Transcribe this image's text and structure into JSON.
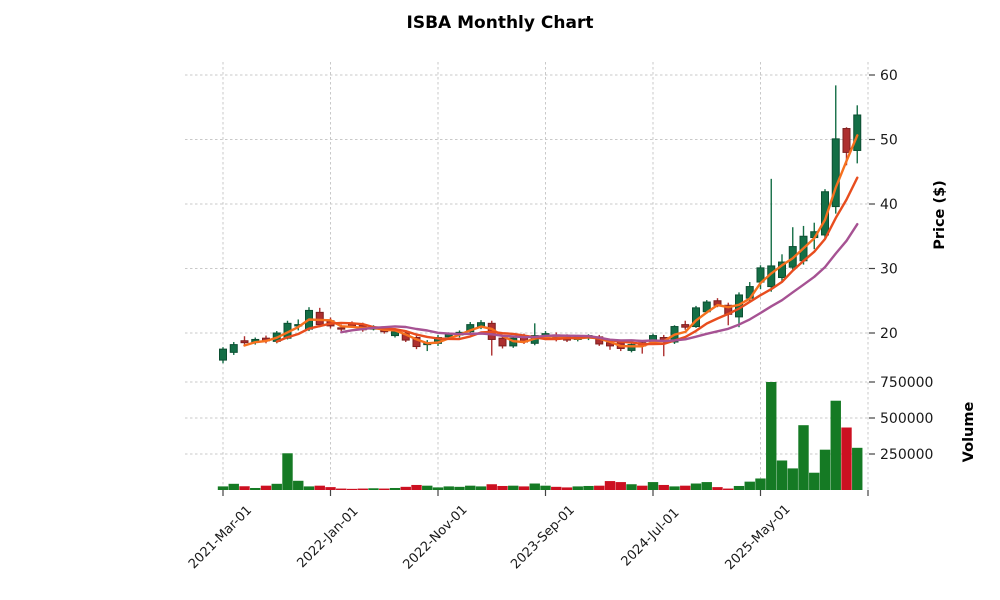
{
  "title": "ISBA Monthly Chart",
  "chart_data": {
    "type": "candlestick",
    "title": "ISBA Monthly Chart",
    "ylabel": "Price ($)",
    "ylabel_volume": "Volume",
    "grid": true,
    "price_ticks": [
      20,
      30,
      40,
      50,
      60
    ],
    "price_axis_range": [
      14.3,
      62.3
    ],
    "volume_ticks": [
      250000,
      500000,
      750000
    ],
    "x_ticks": [
      {
        "index": 0,
        "label": "2021-Mar-01"
      },
      {
        "index": 10,
        "label": "2022-Jan-01"
      },
      {
        "index": 20,
        "label": "2022-Nov-01"
      },
      {
        "index": 30,
        "label": "2023-Sep-01"
      },
      {
        "index": 40,
        "label": "2024-Jul-01"
      },
      {
        "index": 50,
        "label": "2025-May-01"
      }
    ],
    "extra_unlabeled_tick_index": 60,
    "moving_average_windows": [
      3,
      6,
      12
    ],
    "candles_format": [
      "open",
      "high",
      "low",
      "close",
      "volume"
    ],
    "candles": [
      [
        15.8,
        17.8,
        15.3,
        17.5,
        25000
      ],
      [
        17.0,
        18.6,
        16.6,
        18.2,
        43000
      ],
      [
        18.8,
        19.5,
        18.2,
        18.5,
        26000
      ],
      [
        18.6,
        19.3,
        18.2,
        19.0,
        14000
      ],
      [
        19.2,
        19.6,
        18.4,
        18.8,
        30000
      ],
      [
        18.7,
        20.3,
        18.4,
        20.0,
        43000
      ],
      [
        19.2,
        21.9,
        19.0,
        21.5,
        255000
      ],
      [
        21.1,
        22.1,
        20.4,
        21.3,
        64000
      ],
      [
        20.6,
        24.0,
        20.3,
        23.5,
        25000
      ],
      [
        23.2,
        23.9,
        20.9,
        21.3,
        30000
      ],
      [
        21.9,
        22.4,
        20.7,
        21.1,
        20000
      ],
      [
        20.8,
        21.3,
        20.3,
        20.7,
        10000
      ],
      [
        21.4,
        21.8,
        20.9,
        21.1,
        8000
      ],
      [
        21.2,
        21.6,
        20.2,
        20.5,
        10000
      ],
      [
        20.8,
        21.2,
        20.4,
        20.8,
        12000
      ],
      [
        20.6,
        20.9,
        19.9,
        20.2,
        10000
      ],
      [
        19.6,
        20.6,
        19.3,
        20.2,
        14000
      ],
      [
        20.0,
        20.3,
        18.6,
        18.9,
        22000
      ],
      [
        19.3,
        19.6,
        17.5,
        17.9,
        35000
      ],
      [
        18.2,
        18.9,
        17.2,
        18.4,
        30000
      ],
      [
        18.4,
        19.7,
        18.0,
        19.3,
        18000
      ],
      [
        19.4,
        20.1,
        19.0,
        19.8,
        25000
      ],
      [
        19.7,
        20.4,
        19.3,
        20.1,
        22000
      ],
      [
        20.2,
        21.7,
        19.9,
        21.3,
        30000
      ],
      [
        21.0,
        22.0,
        20.6,
        21.6,
        25000
      ],
      [
        21.5,
        21.9,
        16.5,
        19.0,
        40000
      ],
      [
        19.2,
        19.6,
        17.6,
        18.0,
        28000
      ],
      [
        18.0,
        19.5,
        17.7,
        19.2,
        30000
      ],
      [
        19.4,
        19.9,
        18.3,
        18.6,
        25000
      ],
      [
        18.4,
        21.5,
        18.1,
        19.6,
        45000
      ],
      [
        19.2,
        20.3,
        18.9,
        19.9,
        30000
      ],
      [
        19.7,
        20.1,
        18.7,
        19.0,
        22000
      ],
      [
        19.4,
        19.8,
        18.6,
        18.9,
        18000
      ],
      [
        19.0,
        19.7,
        18.7,
        19.5,
        25000
      ],
      [
        19.2,
        19.8,
        18.9,
        19.6,
        28000
      ],
      [
        19.4,
        19.7,
        18.0,
        18.3,
        30000
      ],
      [
        18.5,
        19.0,
        17.4,
        18.0,
        62000
      ],
      [
        18.6,
        18.9,
        17.2,
        17.6,
        55000
      ],
      [
        17.3,
        18.5,
        17.0,
        18.2,
        40000
      ],
      [
        18.5,
        18.8,
        16.8,
        18.0,
        30000
      ],
      [
        18.7,
        19.9,
        18.4,
        19.6,
        55000
      ],
      [
        19.3,
        19.7,
        16.4,
        18.6,
        35000
      ],
      [
        18.6,
        21.2,
        18.3,
        21.0,
        25000
      ],
      [
        21.3,
        21.9,
        20.5,
        20.9,
        30000
      ],
      [
        21.0,
        24.2,
        20.8,
        23.9,
        45000
      ],
      [
        23.3,
        25.1,
        23.0,
        24.8,
        55000
      ],
      [
        25.0,
        25.4,
        24.0,
        24.3,
        20000
      ],
      [
        24.3,
        24.7,
        21.2,
        22.9,
        10000
      ],
      [
        22.5,
        26.3,
        20.9,
        25.9,
        28000
      ],
      [
        25.4,
        27.9,
        24.8,
        27.2,
        58000
      ],
      [
        27.9,
        30.5,
        26.8,
        30.1,
        80000
      ],
      [
        27.2,
        43.9,
        26.4,
        30.4,
        750000
      ],
      [
        28.6,
        32.2,
        28.0,
        31.0,
        205000
      ],
      [
        30.2,
        36.4,
        29.8,
        33.4,
        150000
      ],
      [
        31.2,
        36.6,
        30.6,
        35.0,
        450000
      ],
      [
        34.8,
        37.1,
        33.0,
        35.7,
        120000
      ],
      [
        35.2,
        42.3,
        34.6,
        41.9,
        280000
      ],
      [
        39.6,
        58.4,
        38.5,
        50.1,
        620000
      ],
      [
        51.7,
        51.9,
        46.0,
        48.0,
        434000
      ],
      [
        48.3,
        55.3,
        46.3,
        53.8,
        293000
      ]
    ],
    "colors": {
      "candle_up": "#146e46",
      "candle_up_edge": "#0c4f32",
      "candle_down": "#ad2f2f",
      "candle_down_edge": "#7c1f1f",
      "volume_up": "#157a24",
      "volume_down": "#cc1021",
      "mav3": "#f6701e",
      "mav6": "#e84d1e",
      "mav12": "#a65293",
      "grid": "#c9c9c9",
      "tick": "#444444",
      "text": "#1a1a1a"
    }
  }
}
